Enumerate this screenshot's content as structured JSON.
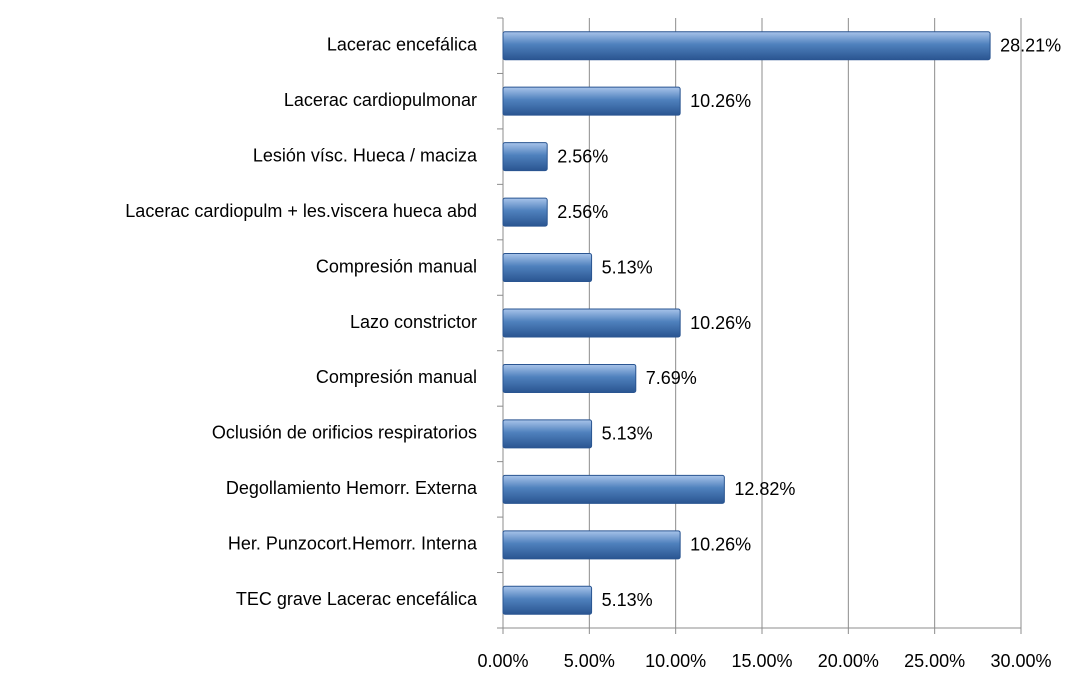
{
  "chart_data": {
    "type": "bar",
    "orientation": "horizontal",
    "categories": [
      "Lacerac encefálica",
      "Lacerac cardiopulmonar",
      "Lesión vísc. Hueca / maciza",
      "Lacerac cardiopulm + les.viscera hueca abd",
      "Compresión manual",
      "Lazo constrictor",
      "Compresión manual",
      "Oclusión de orificios respiratorios",
      "Degollamiento Hemorr. Externa",
      "Her. Punzocort.Hemorr. Interna",
      "TEC grave Lacerac encefálica"
    ],
    "values": [
      28.21,
      10.26,
      2.56,
      2.56,
      5.13,
      10.26,
      7.69,
      5.13,
      12.82,
      10.26,
      5.13
    ],
    "value_labels": [
      "28.21%",
      "10.26%",
      "2.56%",
      "2.56%",
      "5.13%",
      "10.26%",
      "7.69%",
      "5.13%",
      "12.82%",
      "10.26%",
      "5.13%"
    ],
    "color": "#4f81bd",
    "xlim": [
      0,
      30
    ],
    "xticks": [
      {
        "value": 0,
        "label": "0.00%"
      },
      {
        "value": 5,
        "label": "5.00%"
      },
      {
        "value": 10,
        "label": "10.00%"
      },
      {
        "value": 15,
        "label": "15.00%"
      },
      {
        "value": 20,
        "label": "20.00%"
      },
      {
        "value": 25,
        "label": "25.00%"
      },
      {
        "value": 30,
        "label": "30.00%"
      }
    ],
    "grid": true
  }
}
